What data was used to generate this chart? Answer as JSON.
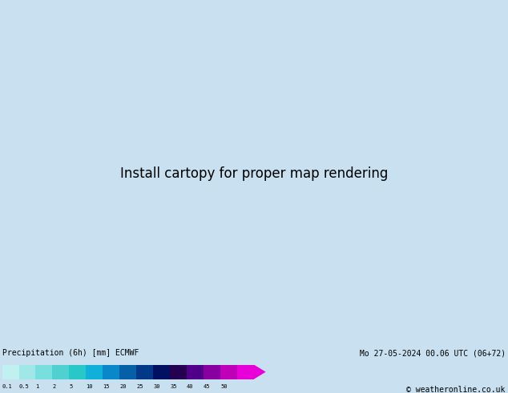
{
  "title_left": "Precipitation (6h) [mm] ECMWF",
  "title_right": "Mo 27-05-2024 00.06 UTC (06+72)",
  "copyright": "© weatheronline.co.uk",
  "colorbar_labels": [
    "0.1",
    "0.5",
    "1",
    "2",
    "5",
    "10",
    "15",
    "20",
    "25",
    "30",
    "35",
    "40",
    "45",
    "50"
  ],
  "colorbar_colors": [
    "#c0f0f0",
    "#a0e8e8",
    "#78dede",
    "#50d0d0",
    "#28c8c8",
    "#10b0d8",
    "#0888c8",
    "#0560a8",
    "#023888",
    "#011060",
    "#250050",
    "#500088",
    "#8800a0",
    "#c000b8",
    "#e800d8"
  ],
  "ocean_color": "#c8e8f8",
  "land_color": "#d0dca0",
  "gray_land_color": "#b8b8b8",
  "bg_color": "#c8e0f0",
  "bottom_bg": "#e0e0e0",
  "fig_width": 6.34,
  "fig_height": 4.9,
  "dpi": 100,
  "map_extent": [
    -175,
    -50,
    15,
    80
  ]
}
